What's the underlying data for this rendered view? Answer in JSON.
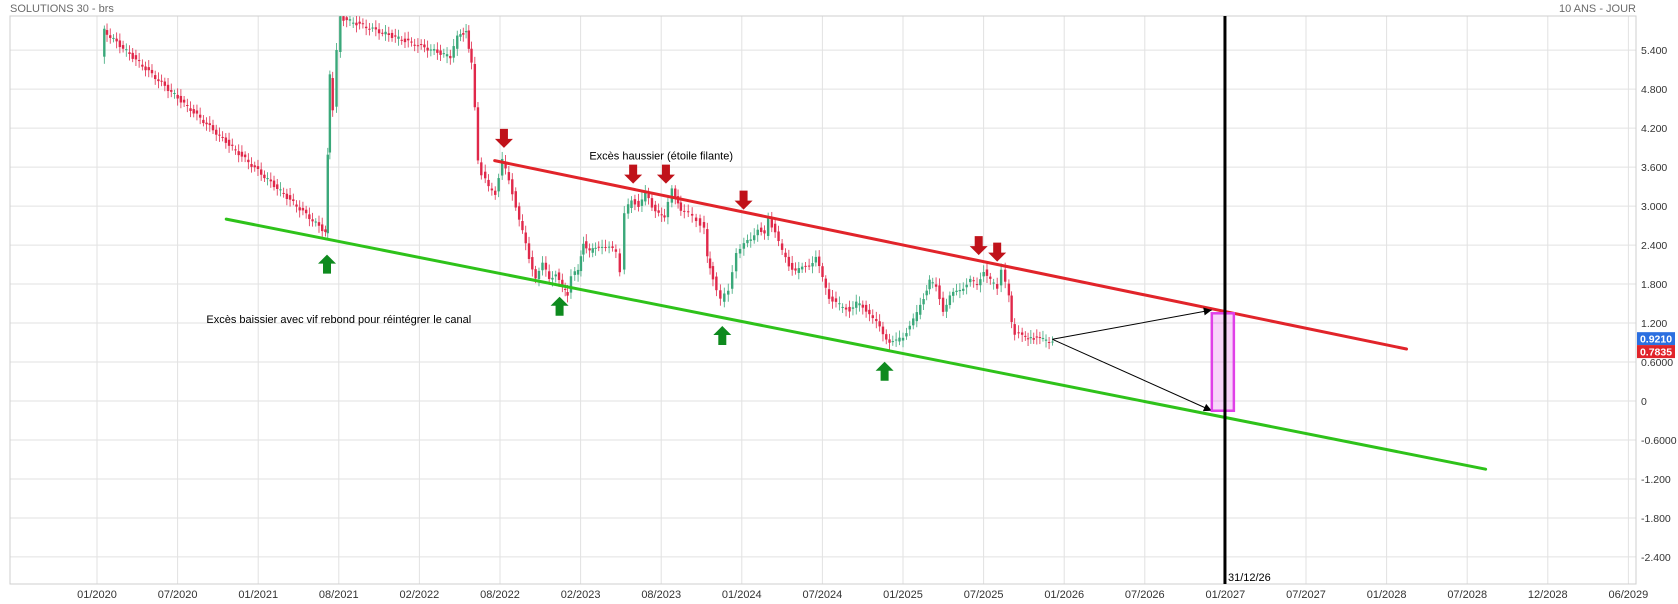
{
  "header": {
    "symbol": "SOLUTIONS 30 - brs",
    "period": "10 ANS - JOUR"
  },
  "chart_data": {
    "type": "candlestick",
    "grid": true,
    "x_ticks": [
      "01/2020",
      "07/2020",
      "01/2021",
      "08/2021",
      "02/2022",
      "08/2022",
      "02/2023",
      "08/2023",
      "01/2024",
      "07/2024",
      "01/2025",
      "07/2025",
      "01/2026",
      "07/2026",
      "01/2027",
      "07/2027",
      "01/2028",
      "07/2028",
      "12/2028",
      "06/2029"
    ],
    "y_ticks": [
      "5.400",
      "4.800",
      "4.200",
      "3.600",
      "3.000",
      "2.400",
      "1.800",
      "1.200",
      "0.6000",
      "0",
      "-0.6000",
      "-1.200",
      "-1.800",
      "-2.400"
    ],
    "ylim": [
      -2.9,
      6.0
    ],
    "price_labels": [
      {
        "text": "0.9210",
        "value": 0.921,
        "color": "#2b6fe0"
      },
      {
        "text": "0.7835",
        "value": 0.7835,
        "color": "#e1242a"
      }
    ],
    "series": [
      {
        "name": "",
        "kind": "price",
        "points": [
          [
            "2020-01-15",
            5.3
          ],
          [
            "2020-01-20",
            5.7
          ],
          [
            "2021-07-01",
            2.6
          ],
          [
            "2021-07-05",
            3.8
          ],
          [
            "2021-07-12",
            5.0
          ],
          [
            "2021-07-20",
            4.5
          ],
          [
            "2021-08-01",
            5.4
          ],
          [
            "2021-08-08",
            5.9
          ],
          [
            "2022-04-15",
            5.3
          ],
          [
            "2022-05-01",
            5.6
          ],
          [
            "2022-05-20",
            5.7
          ],
          [
            "2022-06-01",
            5.2
          ],
          [
            "2022-06-10",
            4.5
          ],
          [
            "2022-06-15",
            3.7
          ],
          [
            "2022-06-25",
            3.5
          ],
          [
            "2022-07-10",
            3.3
          ],
          [
            "2022-07-25",
            3.2
          ],
          [
            "2022-08-10",
            3.7
          ],
          [
            "2022-08-25",
            3.4
          ],
          [
            "2022-09-10",
            3.0
          ],
          [
            "2022-09-25",
            2.6
          ],
          [
            "2022-10-10",
            2.2
          ],
          [
            "2022-10-25",
            1.9
          ],
          [
            "2022-11-10",
            2.1
          ],
          [
            "2022-11-25",
            1.9
          ],
          [
            "2022-12-10",
            1.95
          ],
          [
            "2022-12-25",
            1.75
          ],
          [
            "2023-01-05",
            1.65
          ],
          [
            "2023-01-15",
            1.95
          ],
          [
            "2023-01-30",
            2.0
          ],
          [
            "2023-02-10",
            2.45
          ],
          [
            "2023-02-25",
            2.3
          ],
          [
            "2023-03-10",
            2.35
          ],
          [
            "2023-03-25",
            2.4
          ],
          [
            "2023-04-10",
            2.35
          ],
          [
            "2023-04-25",
            2.3
          ],
          [
            "2023-05-05",
            2.0
          ],
          [
            "2023-05-15",
            2.9
          ],
          [
            "2023-05-30",
            3.1
          ],
          [
            "2023-06-15",
            3.0
          ],
          [
            "2023-06-30",
            3.2
          ],
          [
            "2023-07-15",
            3.0
          ],
          [
            "2023-07-30",
            2.9
          ],
          [
            "2023-08-10",
            2.8
          ],
          [
            "2023-08-25",
            3.3
          ],
          [
            "2023-09-10",
            2.9
          ],
          [
            "2023-09-25",
            2.9
          ],
          [
            "2023-10-10",
            2.8
          ],
          [
            "2023-10-25",
            2.65
          ],
          [
            "2023-10-30",
            2.2
          ],
          [
            "2023-11-10",
            1.9
          ],
          [
            "2023-11-25",
            1.55
          ],
          [
            "2023-12-10",
            1.7
          ],
          [
            "2023-12-25",
            2.3
          ],
          [
            "2024-01-10",
            2.4
          ],
          [
            "2024-01-25",
            2.5
          ],
          [
            "2024-02-10",
            2.65
          ],
          [
            "2024-02-25",
            2.55
          ],
          [
            "2024-03-05",
            2.8
          ],
          [
            "2024-03-20",
            2.6
          ],
          [
            "2024-04-05",
            2.3
          ],
          [
            "2024-04-20",
            2.1
          ],
          [
            "2024-05-05",
            2.0
          ],
          [
            "2024-05-20",
            2.05
          ],
          [
            "2024-06-05",
            2.1
          ],
          [
            "2024-06-20",
            2.2
          ],
          [
            "2024-07-05",
            1.9
          ],
          [
            "2024-07-20",
            1.6
          ],
          [
            "2024-08-05",
            1.5
          ],
          [
            "2024-08-20",
            1.45
          ],
          [
            "2024-09-05",
            1.4
          ],
          [
            "2024-09-20",
            1.5
          ],
          [
            "2024-10-05",
            1.45
          ],
          [
            "2024-10-20",
            1.35
          ],
          [
            "2024-11-05",
            1.2
          ],
          [
            "2024-11-20",
            1.05
          ],
          [
            "2024-12-05",
            0.9
          ],
          [
            "2024-12-20",
            0.92
          ],
          [
            "2025-01-05",
            1.0
          ],
          [
            "2025-01-20",
            1.15
          ],
          [
            "2025-02-05",
            1.35
          ],
          [
            "2025-02-20",
            1.6
          ],
          [
            "2025-03-05",
            1.85
          ],
          [
            "2025-03-20",
            1.75
          ],
          [
            "2025-04-05",
            1.4
          ],
          [
            "2025-04-20",
            1.6
          ],
          [
            "2025-05-05",
            1.7
          ],
          [
            "2025-05-20",
            1.75
          ],
          [
            "2025-06-05",
            1.85
          ],
          [
            "2025-06-20",
            1.8
          ],
          [
            "2025-07-05",
            2.0
          ],
          [
            "2025-07-20",
            1.85
          ],
          [
            "2025-08-05",
            1.75
          ],
          [
            "2025-08-15",
            2.05
          ],
          [
            "2025-09-01",
            1.6
          ],
          [
            "2025-09-05",
            1.2
          ],
          [
            "2025-09-15",
            1.05
          ],
          [
            "2025-10-01",
            1.0
          ],
          [
            "2025-10-20",
            0.98
          ],
          [
            "2025-11-10",
            0.95
          ],
          [
            "2025-12-01",
            0.93
          ],
          [
            "2025-12-10",
            0.921
          ]
        ]
      },
      {
        "name": "",
        "kind": "line",
        "color": "#e1242a",
        "points": [
          [
            "2022-07-20",
            3.7
          ],
          [
            "2028-02-15",
            0.8
          ]
        ]
      },
      {
        "name": "",
        "kind": "line",
        "color": "#2ec21a",
        "points": [
          [
            "2020-10-20",
            2.8
          ],
          [
            "2028-08-05",
            -1.05
          ]
        ]
      },
      {
        "name": "",
        "kind": "arrow",
        "color": "#000000",
        "points": [
          [
            "2025-12-05",
            0.95
          ],
          [
            "2026-12-01",
            1.4
          ]
        ]
      },
      {
        "name": "",
        "kind": "arrow",
        "color": "#000000",
        "points": [
          [
            "2025-12-05",
            0.95
          ],
          [
            "2026-12-01",
            -0.15
          ]
        ]
      }
    ],
    "vertical_marker": {
      "date": "2026-12-31",
      "label": "31/12/26",
      "color": "#000000"
    },
    "target_box": {
      "date_start": "2026-12-01",
      "date_end": "2027-01-20",
      "y_top": 1.35,
      "y_bottom": -0.15,
      "color": "#e040e8"
    },
    "markers": [
      {
        "type": "up",
        "date": "2021-07-01",
        "y": 2.1,
        "color": "#0e8a1e"
      },
      {
        "type": "up",
        "date": "2022-12-15",
        "y": 1.45,
        "color": "#0e8a1e"
      },
      {
        "type": "up",
        "date": "2023-11-25",
        "y": 1.0,
        "color": "#0e8a1e"
      },
      {
        "type": "up",
        "date": "2024-11-20",
        "y": 0.45,
        "color": "#0e8a1e"
      },
      {
        "type": "down",
        "date": "2022-08-10",
        "y": 4.05,
        "color": "#c0121a"
      },
      {
        "type": "down",
        "date": "2023-05-30",
        "y": 3.5,
        "color": "#c0121a"
      },
      {
        "type": "down",
        "date": "2023-08-10",
        "y": 3.5,
        "color": "#c0121a"
      },
      {
        "type": "down",
        "date": "2024-01-05",
        "y": 3.1,
        "color": "#c0121a"
      },
      {
        "type": "down",
        "date": "2025-06-20",
        "y": 2.4,
        "color": "#c0121a"
      },
      {
        "type": "down",
        "date": "2025-08-01",
        "y": 2.3,
        "color": "#c0121a"
      }
    ],
    "annotations": [
      {
        "text": "Excès haussier (étoile filante)",
        "date": "2023-08-01",
        "y": 3.72
      },
      {
        "text": "Excès baissier avec vif rebond pour réintégrer le canal",
        "date": "2021-08-01",
        "y": 1.2
      }
    ]
  }
}
